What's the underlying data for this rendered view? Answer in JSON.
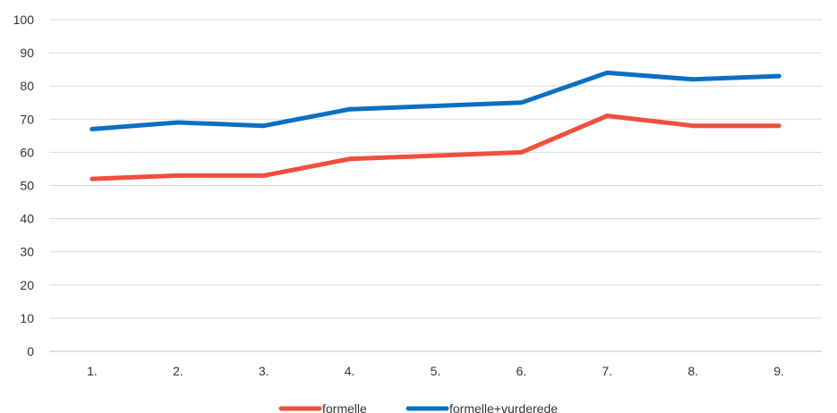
{
  "chart_data": {
    "type": "line",
    "title": "",
    "xlabel": "",
    "ylabel": "",
    "categories": [
      "1.",
      "2.",
      "3.",
      "4.",
      "5.",
      "6.",
      "7.",
      "8.",
      "9."
    ],
    "ylim": [
      0,
      100
    ],
    "yticks": [
      "0",
      "10",
      "20",
      "30",
      "40",
      "50",
      "60",
      "70",
      "80",
      "90",
      "100"
    ],
    "grid": true,
    "legend_position": "bottom",
    "series": [
      {
        "name": "formelle",
        "color": "#f04e3e",
        "values": [
          52,
          53,
          53,
          58,
          59,
          60,
          71,
          68,
          68
        ]
      },
      {
        "name": "formelle+vurderede",
        "color": "#0b6fc3",
        "values": [
          67,
          69,
          68,
          73,
          74,
          75,
          84,
          82,
          83
        ]
      }
    ]
  }
}
